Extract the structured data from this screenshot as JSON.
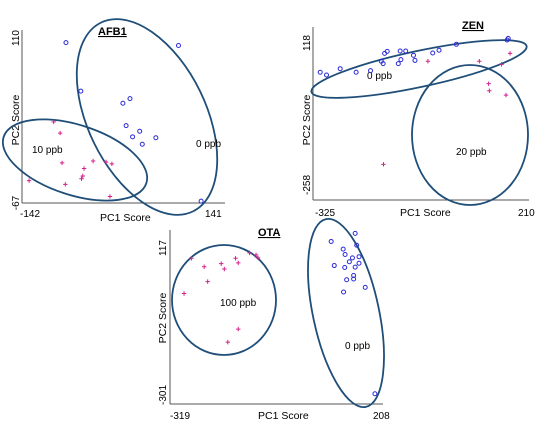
{
  "chart_data": [
    {
      "type": "scatter",
      "title": "AFB1",
      "xlabel": "PC1 Score",
      "ylabel": "PC2 Score",
      "xticks": [
        "-142",
        "141"
      ],
      "yticks": [
        "110",
        "-67"
      ],
      "xlim": [
        -142,
        141
      ],
      "ylim": [
        -67,
        110
      ],
      "groups": [
        {
          "label": "10 ppb",
          "marker": "plus",
          "color": "#d2228c",
          "points": [
            [
              -131,
              -43
            ],
            [
              -93,
              20
            ],
            [
              -83,
              8
            ],
            [
              -80,
              -24
            ],
            [
              -75,
              -47
            ],
            [
              -50,
              -41
            ],
            [
              -48,
              -38
            ],
            [
              -46,
              -30
            ],
            [
              -32,
              -22
            ],
            [
              -12,
              -23
            ],
            [
              -6,
              -60
            ],
            [
              -3,
              -25
            ]
          ]
        },
        {
          "label": "0 ppb",
          "marker": "circle",
          "color": "#2b2bd6",
          "points": [
            [
              -74,
              105
            ],
            [
              -51,
              53
            ],
            [
              14,
              40
            ],
            [
              19,
              16
            ],
            [
              25,
              45
            ],
            [
              29,
              4
            ],
            [
              40,
              10
            ],
            [
              44,
              -4
            ],
            [
              65,
              3
            ],
            [
              100,
              102
            ],
            [
              135,
              -65
            ]
          ]
        }
      ]
    },
    {
      "type": "scatter",
      "title": "ZEN",
      "xlabel": "PC1 Score",
      "ylabel": "PC2 Score",
      "xticks": [
        "-325",
        "210"
      ],
      "yticks": [
        "118",
        "-258"
      ],
      "xlim": [
        -325,
        210
      ],
      "ylim": [
        -258,
        118
      ],
      "groups": [
        {
          "label": "0 ppb",
          "marker": "circle",
          "color": "#2b2bd6",
          "points": [
            [
              -319,
              31
            ],
            [
              -302,
              24
            ],
            [
              -265,
              40
            ],
            [
              -222,
              31
            ],
            [
              -183,
              35
            ],
            [
              -154,
              59
            ],
            [
              -149,
              53
            ],
            [
              -145,
              79
            ],
            [
              -138,
              84
            ],
            [
              -108,
              53
            ],
            [
              -103,
              85
            ],
            [
              -101,
              63
            ],
            [
              -88,
              85
            ],
            [
              -67,
              74
            ],
            [
              -63,
              61
            ],
            [
              -15,
              80
            ],
            [
              2,
              87
            ],
            [
              49,
              102
            ],
            [
              186,
              113
            ],
            [
              189,
              117
            ]
          ]
        },
        {
          "label": "20 ppb",
          "marker": "plus",
          "color": "#d2228c",
          "points": [
            [
              -148,
              -203
            ],
            [
              -28,
              59
            ],
            [
              111,
              59
            ],
            [
              136,
              2
            ],
            [
              138,
              -16
            ],
            [
              171,
              51
            ],
            [
              183,
              -27
            ],
            [
              194,
              79
            ]
          ]
        }
      ]
    },
    {
      "type": "scatter",
      "title": "OTA",
      "xlabel": "PC1 Score",
      "ylabel": "PC2 Score",
      "xticks": [
        "-319",
        "208"
      ],
      "yticks": [
        "117",
        "-301"
      ],
      "xlim": [
        -319,
        208
      ],
      "ylim": [
        -301,
        117
      ],
      "groups": [
        {
          "label": "100 ppb",
          "marker": "plus",
          "color": "#d2228c",
          "points": [
            [
              -293,
              -28
            ],
            [
              -274,
              64
            ],
            [
              -241,
              42
            ],
            [
              -232,
              3
            ],
            [
              -197,
              50
            ],
            [
              -189,
              36
            ],
            [
              -160,
              64
            ],
            [
              -153,
              52
            ],
            [
              -124,
              78
            ],
            [
              -107,
              73
            ],
            [
              -102,
              65
            ],
            [
              -153,
              -121
            ],
            [
              -180,
              -155
            ]
          ]
        },
        {
          "label": "0 ppb",
          "marker": "circle",
          "color": "#2b2bd6",
          "points": [
            [
              87,
              108
            ],
            [
              149,
              129
            ],
            [
              118,
              88
            ],
            [
              153,
              98
            ],
            [
              123,
              74
            ],
            [
              142,
              65
            ],
            [
              159,
              68
            ],
            [
              159,
              51
            ],
            [
              134,
              55
            ],
            [
              149,
              41
            ],
            [
              95,
              45
            ],
            [
              122,
              40
            ],
            [
              145,
              19
            ],
            [
              145,
              10
            ],
            [
              127,
              8
            ],
            [
              119,
              -24
            ],
            [
              175,
              -12
            ],
            [
              200,
              -290
            ]
          ]
        }
      ]
    }
  ]
}
